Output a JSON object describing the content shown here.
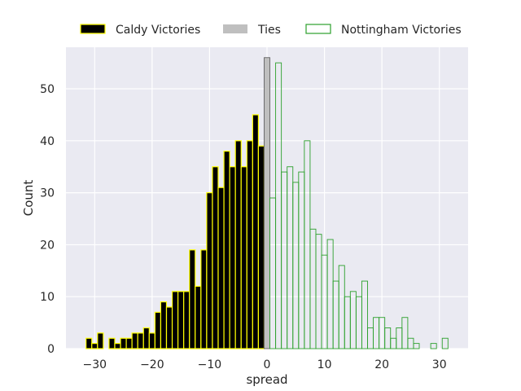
{
  "chart_data": {
    "type": "bar",
    "title": "",
    "xlabel": "spread",
    "ylabel": "Count",
    "xlim": [
      -35,
      35
    ],
    "ylim": [
      0,
      58
    ],
    "xticks": [
      -30,
      -20,
      -10,
      0,
      10,
      20,
      30
    ],
    "yticks": [
      0,
      10,
      20,
      30,
      40,
      50
    ],
    "grid": true,
    "legend_placement": "top-center",
    "colors": {
      "background": "#eaeaf2",
      "grid": "#ffffff",
      "caldy_fill": "#000000",
      "caldy_edge": "#ffff00",
      "ties_fill": "#bfbfbf",
      "ties_edge": "#555555",
      "nottingham_edge": "#2ca02c"
    },
    "series": [
      {
        "name": "Caldy Victories",
        "style": "filled",
        "x": [
          -31,
          -30,
          -29,
          -28,
          -27,
          -26,
          -25,
          -24,
          -23,
          -22,
          -21,
          -20,
          -19,
          -18,
          -17,
          -16,
          -15,
          -14,
          -13,
          -12,
          -11,
          -10,
          -9,
          -8,
          -7,
          -6,
          -5,
          -4,
          -3,
          -2,
          -1
        ],
        "values": [
          2,
          1,
          3,
          0,
          2,
          1,
          2,
          2,
          3,
          3,
          4,
          3,
          7,
          9,
          8,
          11,
          11,
          11,
          19,
          12,
          19,
          30,
          35,
          31,
          38,
          35,
          40,
          35,
          40,
          45,
          39
        ]
      },
      {
        "name": "Ties",
        "style": "filled",
        "x": [
          0
        ],
        "values": [
          56
        ]
      },
      {
        "name": "Nottingham Victories",
        "style": "outline",
        "x": [
          1,
          2,
          3,
          4,
          5,
          6,
          7,
          8,
          9,
          10,
          11,
          12,
          13,
          14,
          15,
          16,
          17,
          18,
          19,
          20,
          21,
          22,
          23,
          24,
          25,
          26,
          27,
          28,
          29,
          30,
          31
        ],
        "values": [
          29,
          55,
          34,
          35,
          32,
          34,
          40,
          23,
          22,
          18,
          21,
          13,
          16,
          10,
          11,
          10,
          13,
          4,
          6,
          6,
          4,
          2,
          4,
          6,
          2,
          1,
          0,
          0,
          1,
          0,
          2
        ]
      }
    ]
  }
}
